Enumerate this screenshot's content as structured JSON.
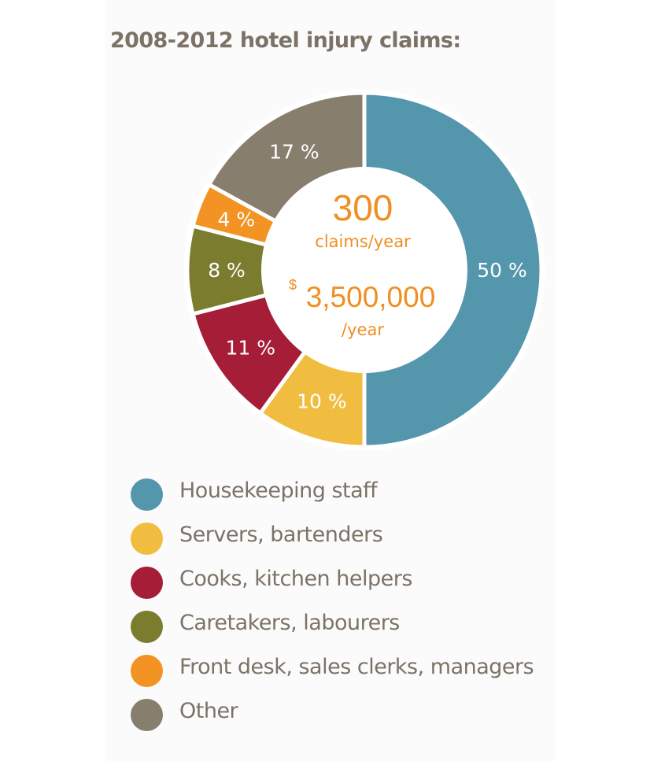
{
  "chart_data": {
    "type": "pie",
    "title": "2008-2012 hotel injury claims:",
    "categories": [
      "Housekeeping staff",
      "Servers, bartenders",
      "Cooks, kitchen helpers",
      "Caretakers, labourers",
      "Front desk, sales clerks, managers",
      "Other"
    ],
    "values": [
      50,
      10,
      11,
      8,
      4,
      17
    ],
    "slice_labels": [
      "50 %",
      "10 %",
      "11 %",
      "8 %",
      "4 %",
      "17 %"
    ],
    "colors": [
      "#5497ad",
      "#f1bd40",
      "#a51d36",
      "#7b7c2e",
      "#f29323",
      "#877e6e"
    ],
    "center": {
      "count": "300",
      "count_unit": "claims/year",
      "cost_symbol": "$",
      "cost": "3,500,000",
      "cost_unit": "/year"
    },
    "legend_position": "bottom"
  }
}
